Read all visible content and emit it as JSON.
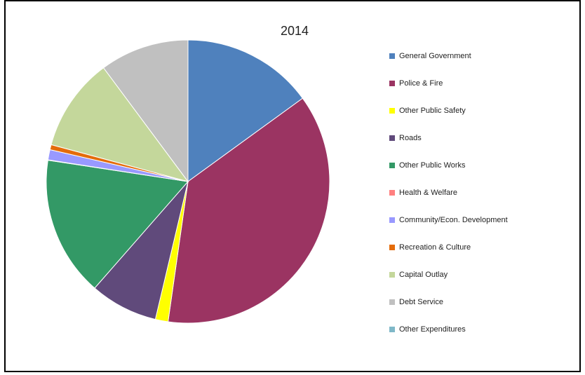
{
  "chart_data": {
    "type": "pie",
    "title": "2014",
    "legend_position": "right",
    "series": [
      {
        "name": "General Government",
        "value": 15.5,
        "color": "#4F81BD"
      },
      {
        "name": "Police & Fire",
        "value": 38.5,
        "color": "#9B3462"
      },
      {
        "name": "Other Public Safety",
        "value": 1.5,
        "color": "#FFFF00"
      },
      {
        "name": "Roads",
        "value": 8.0,
        "color": "#604A7B"
      },
      {
        "name": "Other Public Works",
        "value": 16.5,
        "color": "#339966"
      },
      {
        "name": "Health & Welfare",
        "value": 0.05,
        "color": "#FF8080"
      },
      {
        "name": "Community/Econ. Development",
        "value": 1.2,
        "color": "#9999FF"
      },
      {
        "name": "Recreation & Culture",
        "value": 0.6,
        "color": "#E46C0A"
      },
      {
        "name": "Capital Outlay",
        "value": 11.0,
        "color": "#C4D79B"
      },
      {
        "name": "Debt Service",
        "value": 10.5,
        "color": "#C0C0C0"
      },
      {
        "name": "Other Expenditures",
        "value": 0.0,
        "color": "#7FB8C8"
      }
    ]
  }
}
